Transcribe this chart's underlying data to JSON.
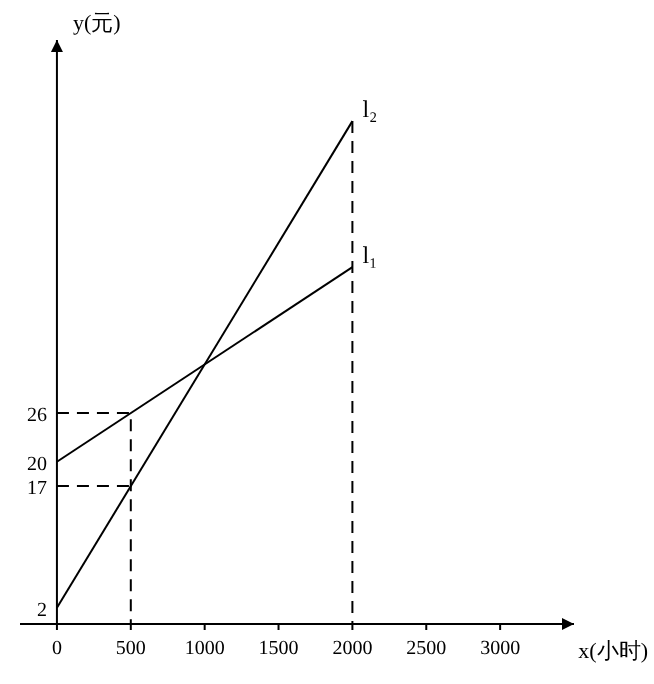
{
  "chart_data": {
    "type": "line",
    "xlabel": "x(小时)",
    "ylabel": "y(元)",
    "xlim": [
      -250,
      3500
    ],
    "ylim": [
      0,
      72
    ],
    "xticks": [
      0,
      500,
      1000,
      1500,
      2000,
      2500,
      3000
    ],
    "yticks": [
      2,
      17,
      20,
      26
    ],
    "grid": false,
    "marker": "none",
    "series": [
      {
        "name": "l₁",
        "color": "#000000",
        "x": [
          0,
          2000
        ],
        "values": [
          20,
          44
        ]
      },
      {
        "name": "l₂",
        "color": "#000000",
        "x": [
          0,
          2000
        ],
        "values": [
          2,
          62
        ]
      },
      {
        "color": "#000000",
        "line_style": "dashed",
        "x": [
          0,
          500,
          500
        ],
        "values": [
          26,
          26,
          0
        ]
      },
      {
        "color": "#000000",
        "line_style": "dashed",
        "x": [
          0,
          500
        ],
        "values": [
          17,
          17
        ]
      },
      {
        "color": "#000000",
        "line_style": "dashed",
        "x": [
          2000,
          2000
        ],
        "values": [
          62,
          0
        ]
      }
    ]
  }
}
